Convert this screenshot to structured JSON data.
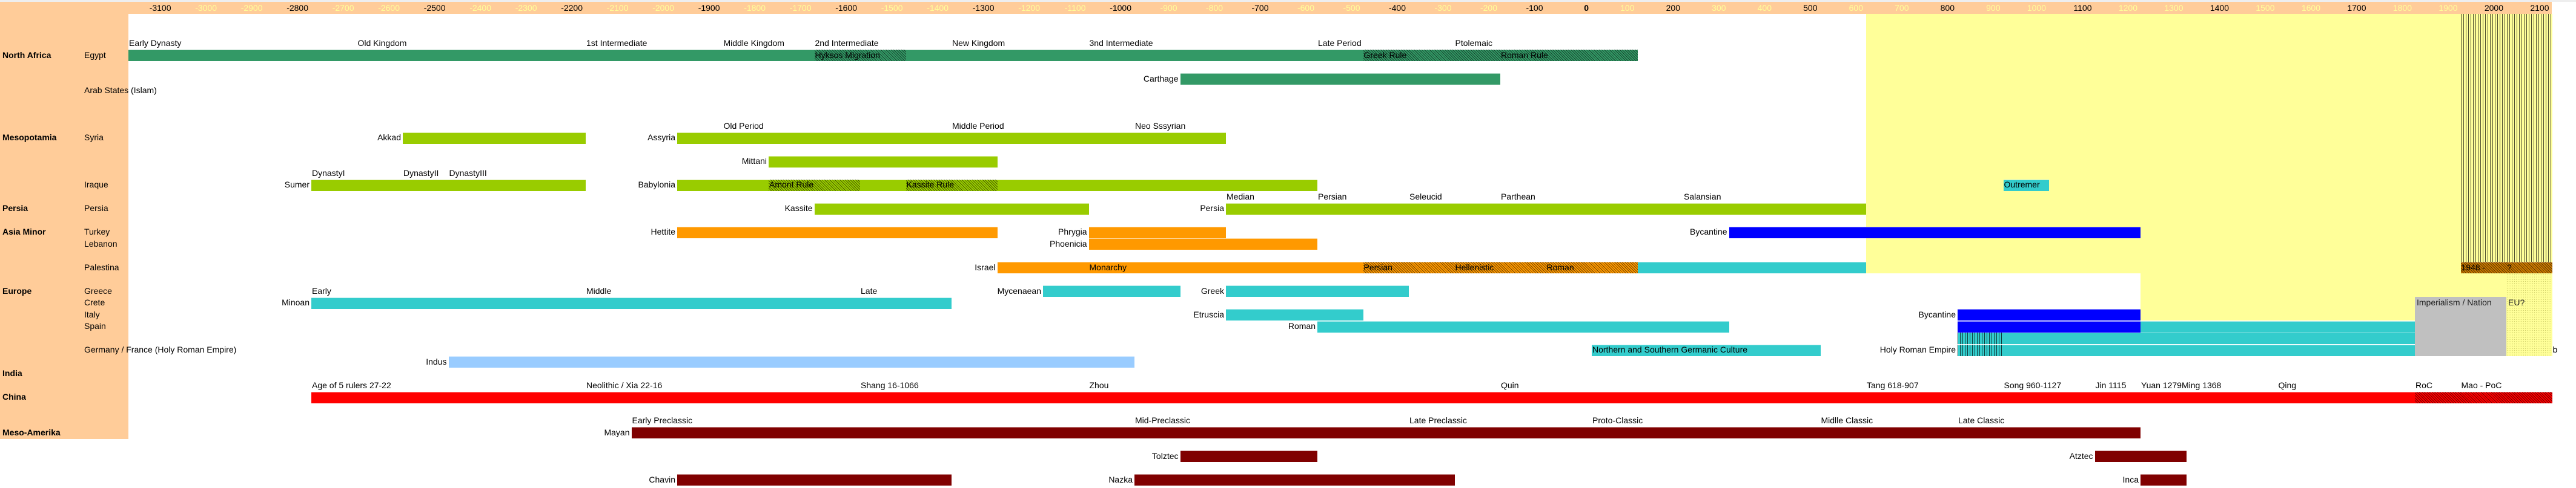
{
  "chart_data": {
    "type": "bar",
    "subtype": "timeline",
    "axis": {
      "years": [
        -3100,
        -3000,
        -2900,
        -2800,
        -2700,
        -2600,
        -2500,
        -2400,
        -2300,
        -2200,
        -2100,
        -2000,
        -1900,
        -1800,
        -1700,
        -1600,
        -1500,
        -1400,
        -1300,
        -1200,
        -1100,
        -1000,
        -900,
        -800,
        -700,
        -600,
        -500,
        -400,
        -300,
        -200,
        -100,
        0,
        100,
        200,
        300,
        400,
        500,
        600,
        700,
        800,
        900,
        1000,
        1100,
        1200,
        1300,
        1400,
        1500,
        1600,
        1700,
        1800,
        1900,
        2000,
        2100
      ],
      "labels": [
        "-3100",
        "-3000",
        "-2900",
        "-2800",
        "-2700",
        "-2600",
        "-2500",
        "-2400",
        "-2300",
        "-2200",
        "-2100",
        "-2000",
        "-1900",
        "-1800",
        "-1700",
        "-1600",
        "-1500",
        "-1400",
        "-1300",
        "-1200",
        "-1100",
        "-1000",
        "-900",
        "-800",
        "-700",
        "-600",
        "-500",
        "-400",
        "-300",
        "-200",
        "-100",
        "0",
        "100",
        "200",
        "300",
        "400",
        "500",
        "600",
        "700",
        "800",
        "900",
        "1000",
        "1100",
        "1200",
        "1300",
        "1400",
        "1500",
        "1600",
        "1700",
        "1800",
        "1900",
        "2000",
        "2100"
      ],
      "major": [
        -3100,
        -2800,
        -2500,
        -2200,
        -1900,
        -1600,
        -1300,
        -1000,
        -700,
        -400,
        -100,
        0,
        200,
        500,
        800,
        1100,
        1400,
        1700,
        2000,
        2100
      ],
      "range": [
        -3100,
        2200
      ],
      "major_color": "#000000",
      "minor_color": "#ffff99",
      "header_color": "#ffcc99"
    },
    "colors": {
      "egypt": "#339966",
      "mesopotamia": "#99cc00",
      "orange": "#ff9900",
      "teal": "#33cccc",
      "blue": "#0000ff",
      "indus": "#99ccff",
      "china": "#ff0000",
      "meso": "#800000",
      "modern": "#ffff99",
      "nation": "#c0c0c0",
      "hatch_orange": "#cc7a00"
    },
    "regions": [
      {
        "start": 700,
        "end": 2000,
        "rows": [
          0,
          21
        ],
        "style": "fill",
        "color": "#ffff99"
      },
      {
        "start": 2000,
        "end": 2200,
        "rows": [
          0,
          20
        ],
        "style": "vlines",
        "color": "#ffff99"
      },
      {
        "start": 1300,
        "end": 2100,
        "rows": [
          22,
          23
        ],
        "style": "fill",
        "color": "#ffff99"
      },
      {
        "start": 1300,
        "end": 1900,
        "rows": [
          24,
          25
        ],
        "style": "fill",
        "color": "#ffff99"
      },
      {
        "start": 1900,
        "end": 2100,
        "rows": [
          24,
          28
        ],
        "style": "fill",
        "color": "#c0c0c0",
        "text": "Imperialism / Nation"
      },
      {
        "start": 2100,
        "end": 2200,
        "rows": [
          22,
          28
        ],
        "style": "dots",
        "color": "#ffff99",
        "text": "EU?"
      }
    ],
    "rows": [
      {
        "row": 2,
        "labels": [
          {
            "year": -3100,
            "text": "Early Dynasty"
          },
          {
            "year": -2600,
            "text": "Old Kingdom"
          },
          {
            "year": -2100,
            "text": "1st Intermediate"
          },
          {
            "year": -1800,
            "text": "Middle Kingdom"
          },
          {
            "year": -1600,
            "text": "2nd Intermediate"
          },
          {
            "year": -1300,
            "text": "New Kingdom"
          },
          {
            "year": -1000,
            "text": "3nd Intermediate"
          },
          {
            "year": -500,
            "text": "Late Period"
          },
          {
            "year": -200,
            "text": "Ptolemaic"
          }
        ]
      },
      {
        "row": 3,
        "region": "North Africa",
        "country": "Egypt",
        "bars": [
          {
            "start": -3100,
            "end": 200,
            "color": "#339966"
          }
        ],
        "hatches": [
          {
            "start": -1600,
            "end": -1400
          },
          {
            "start": -400,
            "end": 200
          }
        ],
        "labels": [
          {
            "year": -1600,
            "text": "Hyksos Migration"
          },
          {
            "year": -400,
            "text": "Greek Rule"
          },
          {
            "year": -100,
            "text": "Roman Rule"
          }
        ]
      },
      {
        "row": 5,
        "bars": [
          {
            "start": -800,
            "end": -100,
            "color": "#339966",
            "caption": "Carthage"
          }
        ]
      },
      {
        "row": 6,
        "country": "Arab States (Islam)"
      },
      {
        "row": 9,
        "labels": [
          {
            "year": -1800,
            "text": "Old Period"
          },
          {
            "year": -1300,
            "text": "Middle Period"
          },
          {
            "year": -900,
            "text": "Neo Sssyrian"
          }
        ]
      },
      {
        "row": 10,
        "region": "Mesopotamia",
        "country": "Syria",
        "bars": [
          {
            "start": -2500,
            "end": -2100,
            "color": "#99cc00",
            "caption": "Akkad"
          },
          {
            "start": -1900,
            "end": -700,
            "color": "#99cc00",
            "caption": "Assyria"
          }
        ]
      },
      {
        "row": 12,
        "bars": [
          {
            "start": -1700,
            "end": -1200,
            "color": "#99cc00",
            "caption": "Mittani"
          }
        ]
      },
      {
        "row": 13,
        "labels": [
          {
            "year": -2700,
            "text": "DynastyI"
          },
          {
            "year": -2500,
            "text": "DynastyII"
          },
          {
            "year": -2400,
            "text": "DynastyIII"
          }
        ]
      },
      {
        "row": 14,
        "country": "Iraque",
        "bars": [
          {
            "start": -2700,
            "end": -2100,
            "color": "#99cc00",
            "caption": "Sumer"
          },
          {
            "start": -1900,
            "end": -500,
            "color": "#99cc00",
            "caption": "Babylonia"
          },
          {
            "start": 1000,
            "end": 1100,
            "color": "#33cccc"
          }
        ],
        "hatches": [
          {
            "start": -1700,
            "end": -1500
          },
          {
            "start": -1400,
            "end": -1200
          }
        ],
        "labels": [
          {
            "year": -1700,
            "text": "Amont Rule"
          },
          {
            "year": -1400,
            "text": "Kassite Rule"
          },
          {
            "year": 1000,
            "text": "Outremer"
          }
        ]
      },
      {
        "row": 15,
        "labels": [
          {
            "year": -700,
            "text": "Median"
          },
          {
            "year": -500,
            "text": "Persian"
          },
          {
            "year": -300,
            "text": "Seleucid"
          },
          {
            "year": -100,
            "text": "Parthean"
          },
          {
            "year": 300,
            "text": "Salansian"
          }
        ]
      },
      {
        "row": 16,
        "region": "Persia",
        "country": "Persia",
        "bars": [
          {
            "start": -1600,
            "end": -1000,
            "color": "#99cc00",
            "caption": "Kassite"
          },
          {
            "start": -700,
            "end": 700,
            "color": "#99cc00",
            "caption": "Persia"
          }
        ]
      },
      {
        "row": 18,
        "region": "Asia Minor",
        "country": "Turkey",
        "bars": [
          {
            "start": -1900,
            "end": -1200,
            "color": "#ff9900",
            "caption": "Hettite"
          },
          {
            "start": -1000,
            "end": -700,
            "color": "#ff9900",
            "caption": "Phrygia"
          },
          {
            "start": 400,
            "end": 1300,
            "color": "#0000ff",
            "caption": "Bycantine"
          }
        ]
      },
      {
        "row": 19,
        "country": "Lebanon",
        "bars": [
          {
            "start": -1000,
            "end": -500,
            "color": "#ff9900",
            "caption": "Phoenicia"
          }
        ]
      },
      {
        "row": 21,
        "country": "Palestina",
        "bars": [
          {
            "start": -1200,
            "end": 200,
            "color": "#ff9900",
            "caption": "Israel"
          },
          {
            "start": 200,
            "end": 700,
            "color": "#33cccc"
          },
          {
            "start": 2000,
            "end": 2200,
            "color": "#cc7a00"
          }
        ],
        "hatches": [
          {
            "start": -400,
            "end": 200
          },
          {
            "start": 2000,
            "end": 2200
          }
        ],
        "labels": [
          {
            "year": -1000,
            "text": "Monarchy"
          },
          {
            "year": -400,
            "text": "Persian"
          },
          {
            "year": -200,
            "text": "Hellenistic"
          },
          {
            "year": 0,
            "text": "Roman"
          },
          {
            "year": 2000,
            "text": "1948 -"
          },
          {
            "year": 2100,
            "text": "?"
          }
        ]
      },
      {
        "row": 23,
        "region": "Europe",
        "country": "Greece",
        "bars": [
          {
            "start": -1100,
            "end": -800,
            "color": "#33cccc",
            "caption": "Mycenaean"
          },
          {
            "start": -700,
            "end": -300,
            "color": "#33cccc",
            "caption": "Greek"
          }
        ],
        "labels": [
          {
            "year": -2700,
            "text": "Early"
          },
          {
            "year": -2100,
            "text": "Middle"
          },
          {
            "year": -1500,
            "text": "Late"
          }
        ]
      },
      {
        "row": 24,
        "country": "Crete",
        "bars": [
          {
            "start": -2700,
            "end": -1300,
            "color": "#33cccc",
            "caption": "Minoan"
          }
        ]
      },
      {
        "row": 25,
        "country": "Italy",
        "bars": [
          {
            "start": -700,
            "end": -400,
            "color": "#33cccc",
            "caption": "Etruscia"
          },
          {
            "start": 900,
            "end": 1300,
            "color": "#0000ff",
            "caption": "Bycantine"
          }
        ]
      },
      {
        "row": 26,
        "country": "Spain",
        "bars": [
          {
            "start": -500,
            "end": 400,
            "color": "#33cccc",
            "caption": "Roman"
          },
          {
            "start": 900,
            "end": 1300,
            "color": "#0000ff"
          },
          {
            "start": 1300,
            "end": 1900,
            "color": "#33cccc"
          }
        ]
      },
      {
        "row": 27,
        "bars": [
          {
            "start": 900,
            "end": 1900,
            "color": "#33cccc"
          }
        ],
        "vhatches": [
          {
            "start": 900,
            "end": 1000
          }
        ]
      },
      {
        "row": 28,
        "country": "Germany / France (Holy Roman Empire)",
        "bars": [
          {
            "start": 100,
            "end": 600,
            "color": "#33cccc"
          },
          {
            "start": 900,
            "end": 1900,
            "color": "#33cccc",
            "caption": "Holy Roman Empire"
          }
        ],
        "vhatches": [
          {
            "start": 900,
            "end": 1000
          }
        ],
        "labels": [
          {
            "year": 100,
            "text": "Northern and Southern Germanic Culture"
          },
          {
            "year": 2200,
            "text": "b"
          }
        ]
      },
      {
        "row": 29,
        "bars": [
          {
            "start": -2400,
            "end": -900,
            "color": "#99ccff",
            "caption": "Indus"
          }
        ]
      },
      {
        "row": 30,
        "region": "India"
      },
      {
        "row": 31,
        "labels": [
          {
            "year": -2700,
            "text": "Age of 5 rulers 27-22"
          },
          {
            "year": -2100,
            "text": "Neolithic / Xia 22-16"
          },
          {
            "year": -1500,
            "text": "Shang 16-1066"
          },
          {
            "year": -1000,
            "text": "Zhou"
          },
          {
            "year": -100,
            "text": "Quin"
          },
          {
            "year": 700,
            "text": "Tang 618-907"
          },
          {
            "year": 1000,
            "text": "Song 960-1127"
          },
          {
            "year": 1200,
            "text": "Jin 1115"
          },
          {
            "year": 1300,
            "text": "Yuan 1279Ming 1368"
          },
          {
            "year": 1600,
            "text": "Qing"
          },
          {
            "year": 1900,
            "text": "RoC"
          },
          {
            "year": 2000,
            "text": "Mao - PoC"
          }
        ]
      },
      {
        "row": 32,
        "region": "China",
        "bars": [
          {
            "start": -2700,
            "end": 2200,
            "color": "#ff0000"
          }
        ],
        "hatches": [
          {
            "start": 1900,
            "end": 2200
          }
        ]
      },
      {
        "row": 34,
        "labels": [
          {
            "year": -2000,
            "text": "Early Preclassic"
          },
          {
            "year": -900,
            "text": "Mid-Preclassic"
          },
          {
            "year": -300,
            "text": "Late Preclassic"
          },
          {
            "year": 100,
            "text": "Proto-Classic"
          },
          {
            "year": 600,
            "text": "Midlle Classic"
          },
          {
            "year": 900,
            "text": "Late Classic"
          }
        ]
      },
      {
        "row": 35,
        "region": "Meso-Amerika",
        "bars": [
          {
            "start": -2000,
            "end": 1300,
            "color": "#800000",
            "caption": "Mayan"
          }
        ]
      },
      {
        "row": 37,
        "bars": [
          {
            "start": -800,
            "end": -500,
            "color": "#800000",
            "caption": "Tolztec"
          },
          {
            "start": 1200,
            "end": 1400,
            "color": "#800000",
            "caption": "Atztec"
          }
        ]
      },
      {
        "row": 39,
        "bars": [
          {
            "start": -1900,
            "end": -1300,
            "color": "#800000",
            "caption": "Chavin"
          },
          {
            "start": -900,
            "end": -200,
            "color": "#800000",
            "caption": "Nazka"
          },
          {
            "start": 1300,
            "end": 1400,
            "color": "#800000",
            "caption": "Inca"
          }
        ]
      }
    ]
  }
}
